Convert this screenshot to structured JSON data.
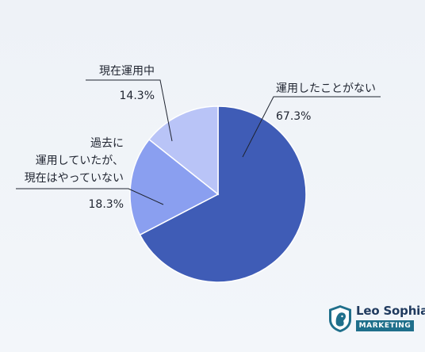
{
  "chart_data": {
    "type": "pie",
    "title": "",
    "slices": [
      {
        "label": "運用したことがない",
        "value": 67.3,
        "value_label": "67.3%",
        "color": "#3f5cb6"
      },
      {
        "label": "過去に運用していたが、現在はやっていない",
        "label_lines": [
          "過去に",
          "運用していたが、",
          "現在はやっていない"
        ],
        "value": 18.3,
        "value_label": "18.3%",
        "color": "#8a9ff0"
      },
      {
        "label": "現在運用中",
        "value": 14.3,
        "value_label": "14.3%",
        "color": "#b9c4f7"
      }
    ],
    "start_angle": "12 o'clock",
    "direction": "clockwise"
  },
  "brand": {
    "name": "Leo Sophia",
    "tag": "MARKETING",
    "color": "#1f6f8b"
  }
}
